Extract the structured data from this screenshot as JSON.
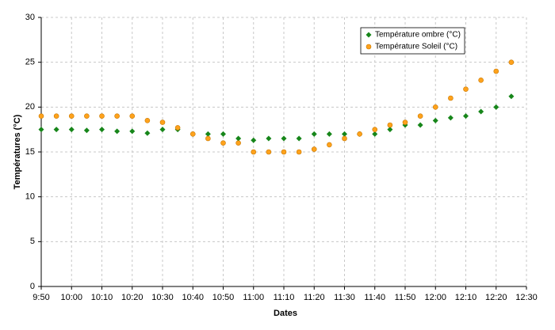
{
  "chart_data": {
    "type": "scatter",
    "x_label": "Dates",
    "y_label": "Températures (°C)",
    "x": [
      "9:50",
      "9:55",
      "10:00",
      "10:05",
      "10:10",
      "10:15",
      "10:20",
      "10:25",
      "10:30",
      "10:35",
      "10:40",
      "10:45",
      "10:50",
      "10:55",
      "11:00",
      "11:05",
      "11:10",
      "11:15",
      "11:20",
      "11:25",
      "11:30",
      "11:35",
      "11:40",
      "11:45",
      "11:50",
      "11:55",
      "12:00",
      "12:05",
      "12:10",
      "12:15",
      "12:20",
      "12:25"
    ],
    "series": [
      {
        "name": "Température ombre (°C)",
        "color": "#17861a",
        "marker": "diamond",
        "values": [
          17.5,
          17.5,
          17.5,
          17.4,
          17.5,
          17.3,
          17.3,
          17.1,
          17.5,
          17.5,
          17.0,
          17.0,
          17.0,
          16.5,
          16.3,
          16.5,
          16.5,
          16.5,
          17.0,
          17.0,
          17.0,
          17.0,
          17.0,
          17.5,
          18.0,
          18.0,
          18.5,
          18.8,
          19.0,
          19.5,
          20.0,
          21.2
        ]
      },
      {
        "name": "Température Soleil (°C)",
        "color": "#ffa21c",
        "marker": "circle",
        "values": [
          19.0,
          19.0,
          19.0,
          19.0,
          19.0,
          19.0,
          19.0,
          18.5,
          18.3,
          17.7,
          17.0,
          16.5,
          16.0,
          16.0,
          15.0,
          15.0,
          15.0,
          15.0,
          15.3,
          15.8,
          16.5,
          17.0,
          17.5,
          18.0,
          18.3,
          19.0,
          20.0,
          21.0,
          22.0,
          23.0,
          24.0,
          25.0
        ]
      }
    ],
    "xlim": [
      "9:50",
      "12:30"
    ],
    "xticks": [
      "9:50",
      "10:00",
      "10:10",
      "10:20",
      "10:30",
      "10:40",
      "10:50",
      "11:00",
      "11:10",
      "11:20",
      "11:30",
      "11:40",
      "11:50",
      "12:00",
      "12:10",
      "12:20",
      "12:30"
    ],
    "ylim": [
      0,
      30
    ],
    "yticks": [
      0,
      5,
      10,
      15,
      20,
      25,
      30
    ],
    "grid": true,
    "legend": "top-right"
  }
}
